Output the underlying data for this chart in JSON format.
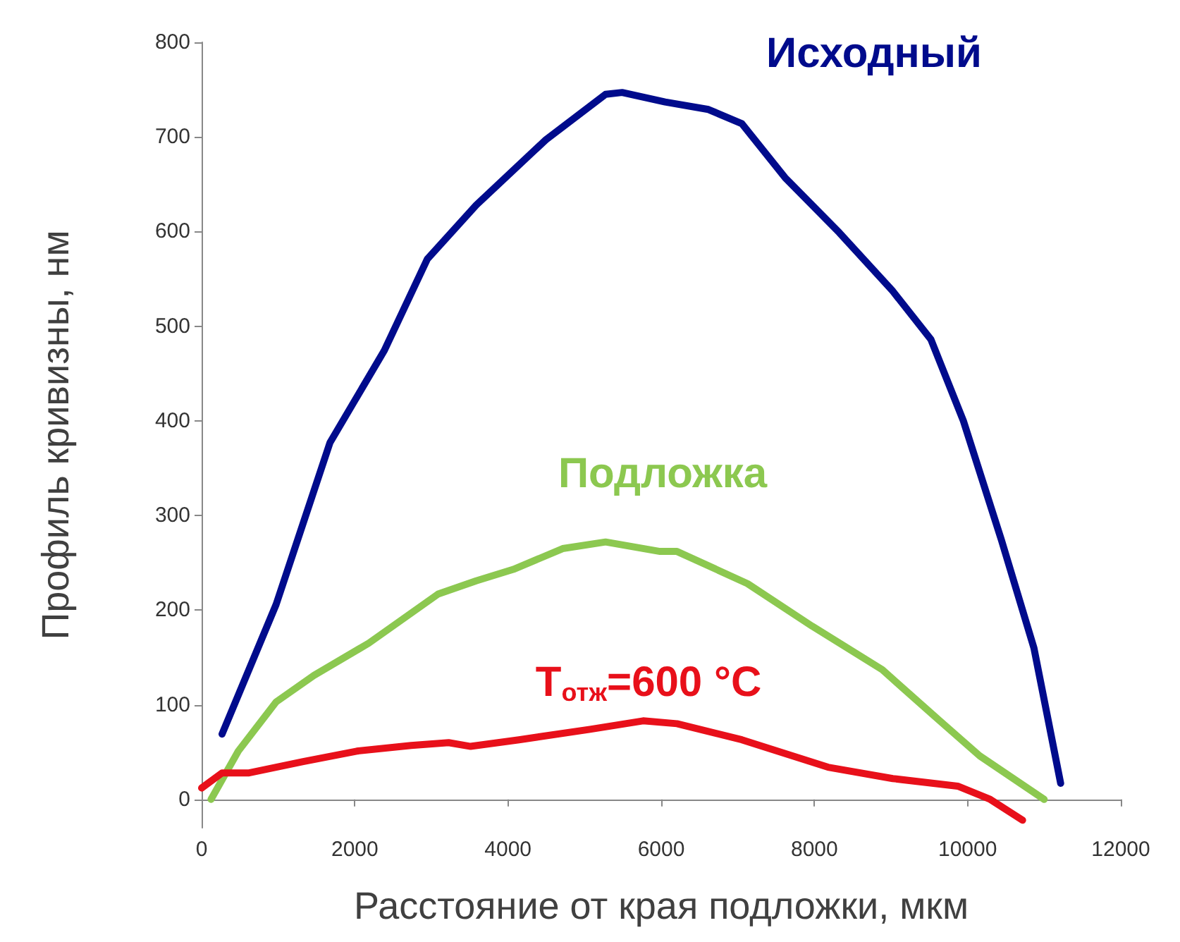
{
  "chart_data": {
    "type": "line",
    "xlabel": "Расстояние от края подложки, мкм",
    "ylabel": "Профиль кривизны, нм",
    "xlim": [
      0,
      12000
    ],
    "xticks": [
      0,
      2000,
      4000,
      6000,
      8000,
      10000,
      12000
    ],
    "ylim": [
      -30,
      800
    ],
    "yticks": [
      0,
      100,
      200,
      300,
      400,
      500,
      600,
      700,
      800
    ],
    "grid": false,
    "legend": false,
    "marker": "none",
    "line_style": "solid",
    "series": [
      {
        "name": "Исходный",
        "color": "#000b8c",
        "x": [
          267,
          973,
          1676,
          2383,
          2947,
          3585,
          4494,
          5274,
          5490,
          6051,
          6617,
          7053,
          7617,
          8324,
          9024,
          9521,
          9945,
          10442,
          10866,
          11215
        ],
        "values": [
          69,
          206,
          377,
          474,
          571,
          628,
          697,
          745,
          747,
          737,
          729,
          714,
          657,
          599,
          537,
          486,
          400,
          274,
          160,
          17
        ]
      },
      {
        "name": "Подложка",
        "color": "#8cc850",
        "x": [
          123,
          479,
          973,
          1467,
          2181,
          3088,
          3585,
          4069,
          4714,
          5274,
          5985,
          6206,
          7127,
          7971,
          8886,
          9595,
          10158,
          11000
        ],
        "values": [
          0,
          51,
          103,
          131,
          165,
          217,
          231,
          243,
          265,
          272,
          262,
          262,
          228,
          183,
          137,
          86,
          46,
          0
        ]
      },
      {
        "name": "T$_{отж}$=600 °C",
        "color": "#e8101a",
        "x": [
          0,
          267,
          620,
          1326,
          2026,
          2735,
          3225,
          3512,
          4143,
          5071,
          5764,
          6206,
          7053,
          8177,
          9024,
          9871,
          10295,
          10718
        ],
        "values": [
          12,
          28,
          28,
          40,
          51,
          57,
          60,
          56,
          63,
          74,
          83,
          80,
          63,
          34,
          22,
          14,
          0,
          -22
        ]
      }
    ]
  }
}
